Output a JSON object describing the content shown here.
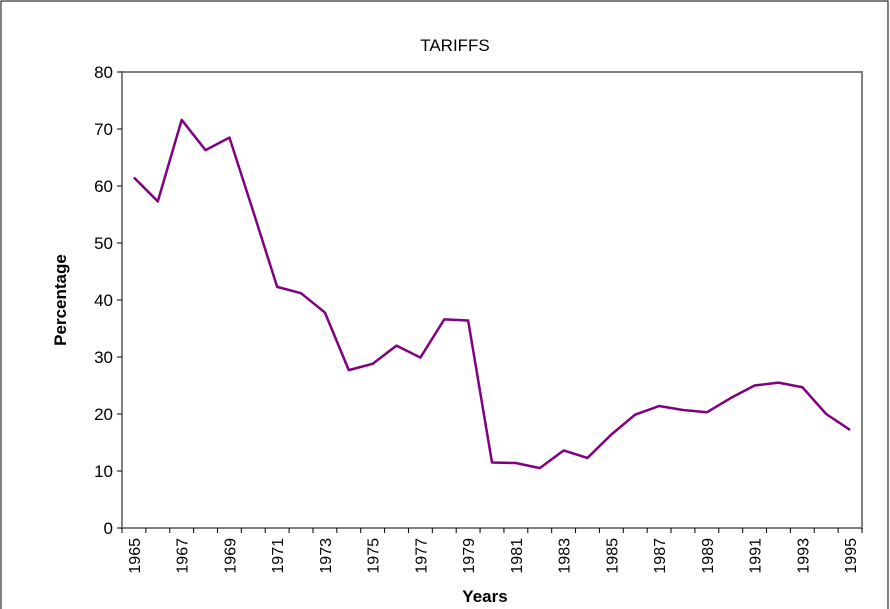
{
  "chart_data": {
    "type": "line",
    "title": "TARIFFS",
    "x_label": "Years",
    "y_label": "Percentage",
    "categories": [
      "1965",
      null,
      "1967",
      null,
      "1969",
      null,
      "1971",
      null,
      "1973",
      null,
      "1975",
      null,
      "1977",
      null,
      "1979",
      null,
      "1981",
      null,
      "1983",
      null,
      "1985",
      null,
      "1987",
      null,
      "1989",
      null,
      "1991",
      null,
      "1993",
      null,
      "1995"
    ],
    "series": [
      {
        "color": "#800080",
        "values": [
          61.5,
          57.3,
          71.6,
          66.3,
          68.5,
          55.5,
          42.3,
          41.2,
          37.8,
          27.7,
          28.8,
          32.0,
          29.9,
          36.6,
          36.4,
          11.5,
          11.4,
          10.5,
          13.6,
          12.3,
          16.4,
          19.9,
          21.4,
          20.7,
          20.3,
          22.8,
          25.0,
          25.5,
          24.7,
          20.0,
          17.2
        ]
      }
    ],
    "ylim": [
      0,
      80
    ],
    "yticks": [
      0,
      10,
      20,
      30,
      40,
      50,
      60,
      70,
      80
    ],
    "grid": false
  }
}
